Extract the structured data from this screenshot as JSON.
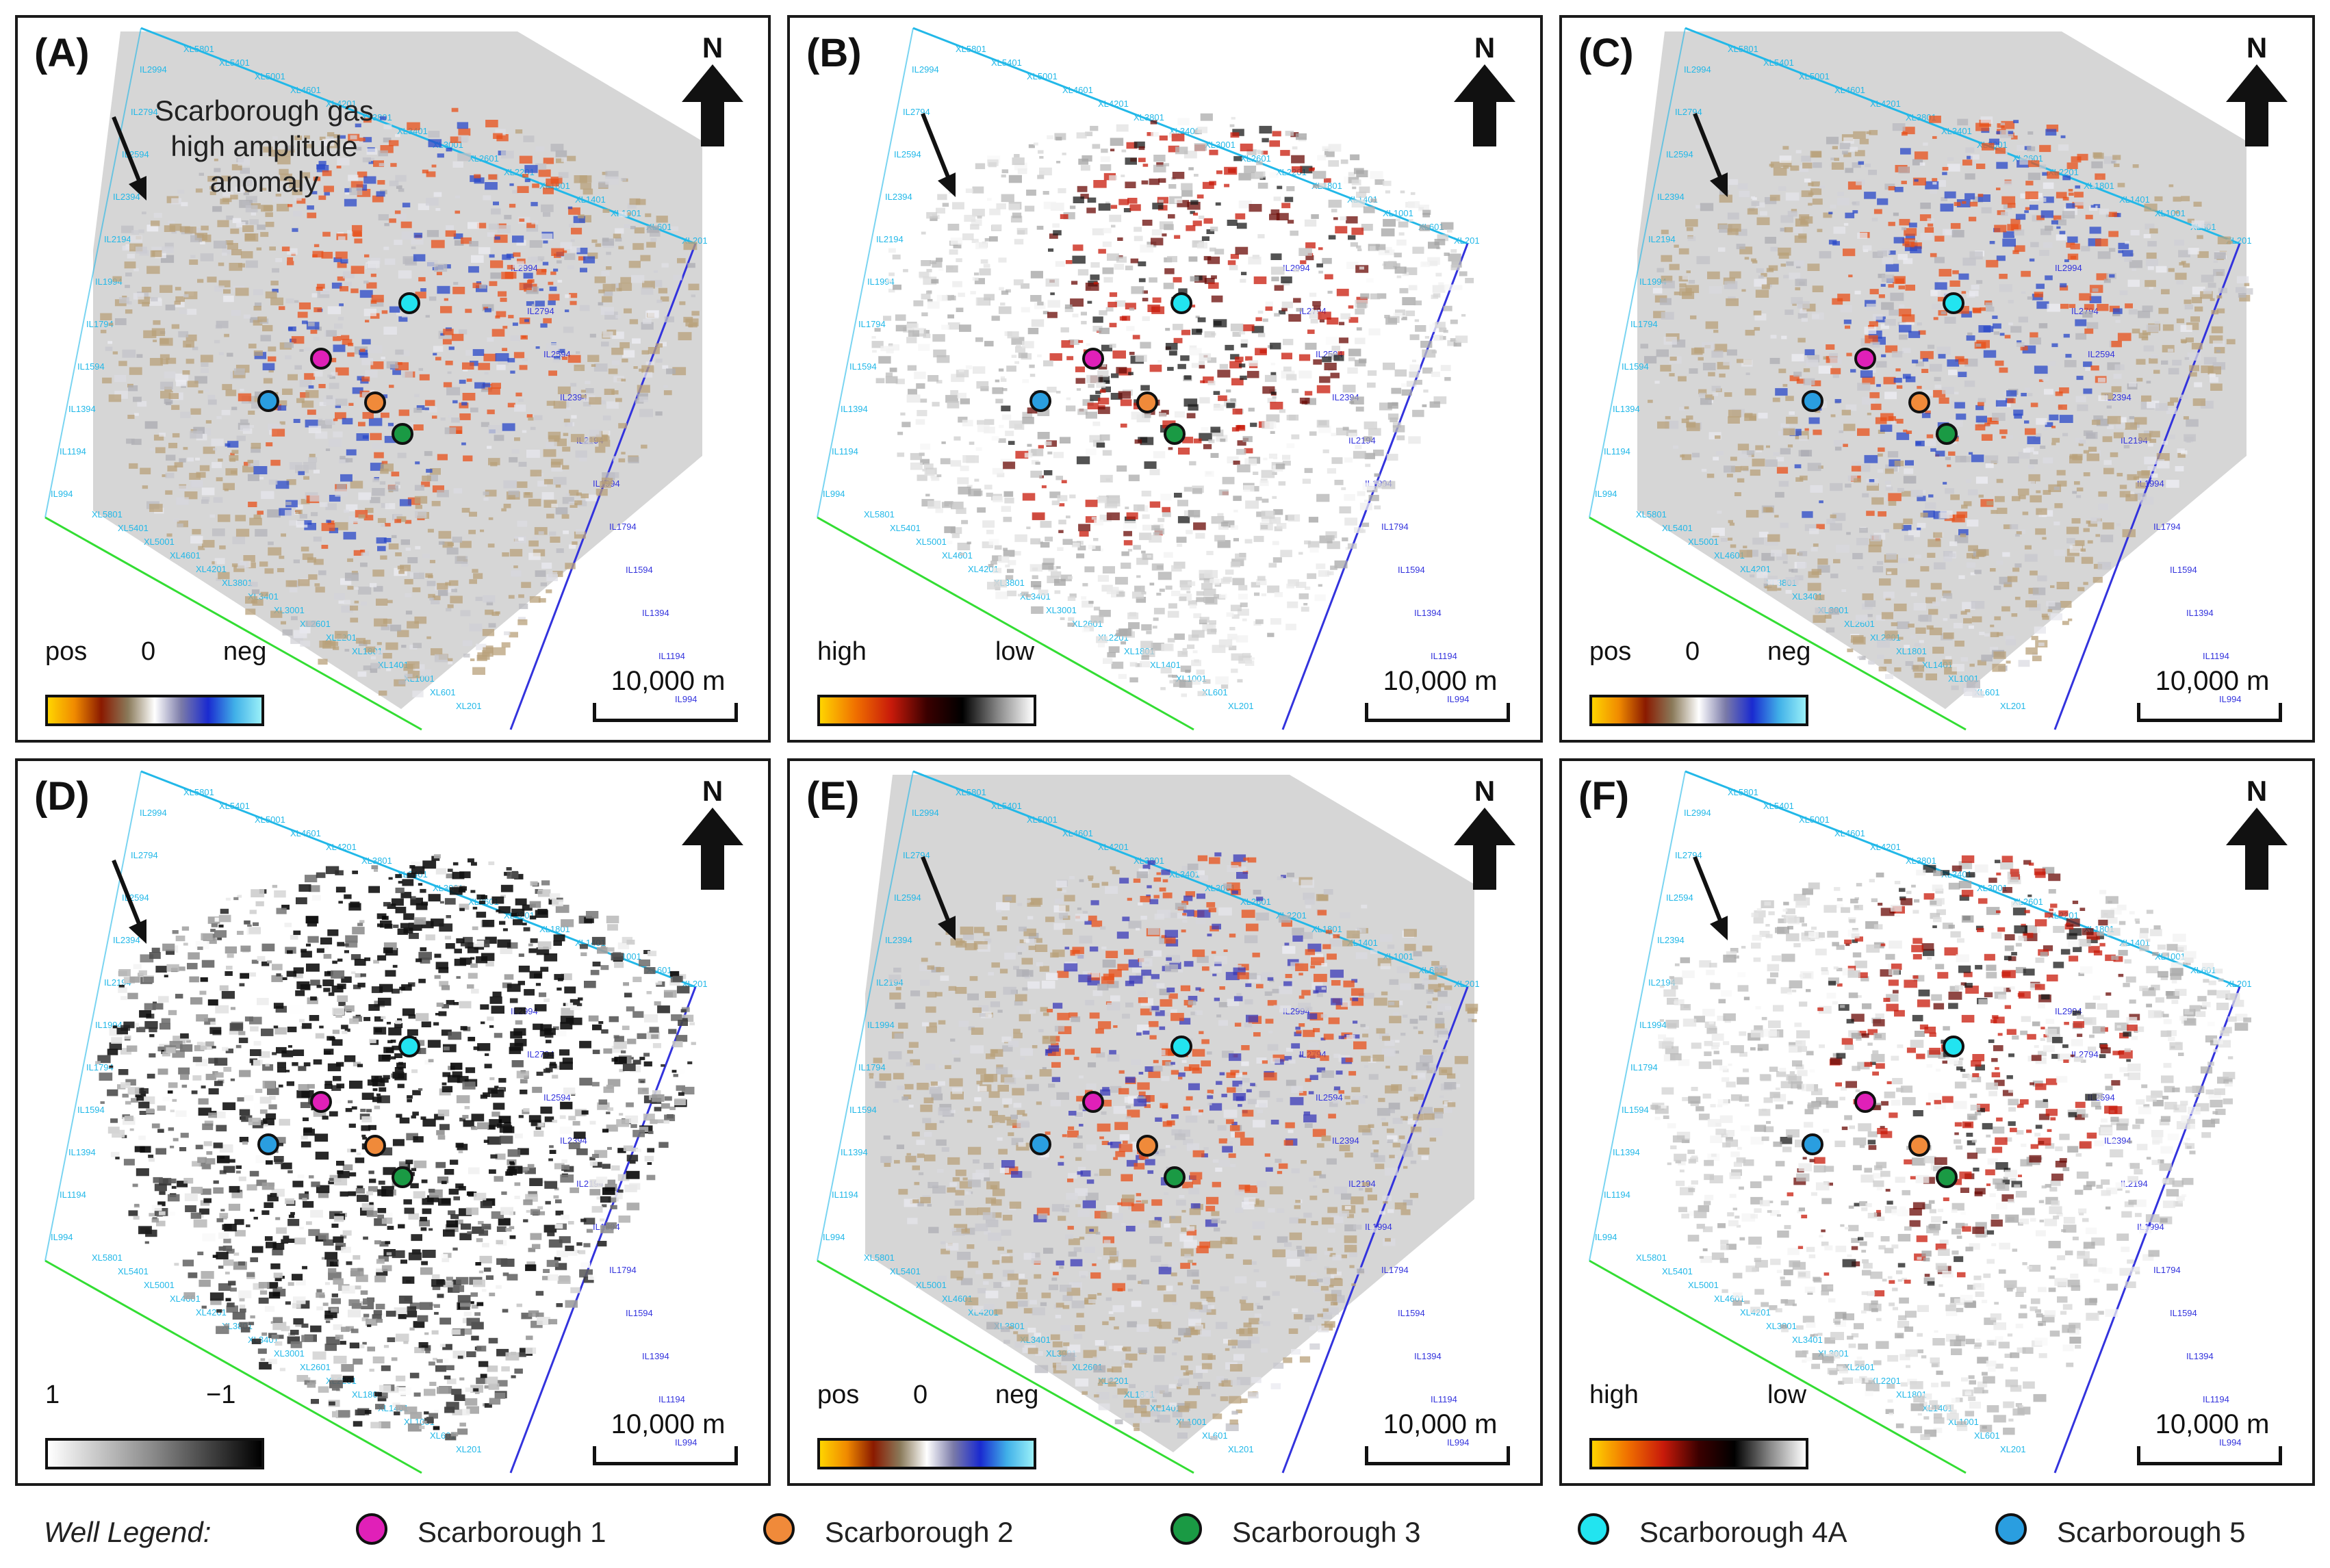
{
  "panels": [
    {
      "label": "(A)",
      "style": "amp",
      "colorbar": {
        "left": "pos",
        "mid": "0",
        "right": "neg",
        "type": "posneg"
      },
      "annotation": "Scarborough gas high amplitude anomaly"
    },
    {
      "label": "(B)",
      "style": "grey",
      "colorbar": {
        "left": "high",
        "mid": "",
        "right": "low",
        "type": "highlow"
      }
    },
    {
      "label": "(C)",
      "style": "amp",
      "colorbar": {
        "left": "pos",
        "mid": "0",
        "right": "neg",
        "type": "posneg"
      }
    },
    {
      "label": "(D)",
      "style": "bw",
      "colorbar": {
        "left": "1",
        "mid": "",
        "right": "−1",
        "type": "bw"
      }
    },
    {
      "label": "(E)",
      "style": "amp",
      "colorbar": {
        "left": "pos",
        "mid": "0",
        "right": "neg",
        "type": "posneg"
      }
    },
    {
      "label": "(F)",
      "style": "grey",
      "colorbar": {
        "left": "high",
        "mid": "",
        "right": "low",
        "type": "highlow"
      }
    }
  ],
  "north_label": "N",
  "scale_label": "10,000 m",
  "legend": {
    "title": "Well Legend:",
    "items": [
      {
        "name": "Scarborough 1",
        "color": "#e020b8"
      },
      {
        "name": "Scarborough 2",
        "color": "#f08a3a"
      },
      {
        "name": "Scarborough 3",
        "color": "#1a9a44"
      },
      {
        "name": "Scarborough 4A",
        "color": "#22e4f0"
      },
      {
        "name": "Scarborough 5",
        "color": "#2a9ee0"
      }
    ]
  },
  "axis_labels": {
    "inline": [
      "IL994",
      "IL1194",
      "IL1394",
      "IL1594",
      "IL1794",
      "IL1994",
      "IL2194",
      "IL2394",
      "IL2594",
      "IL2794",
      "IL2994"
    ],
    "crossline": [
      "XL201",
      "XL601",
      "XL1001",
      "XL1401",
      "XL1801",
      "XL2201",
      "XL2601",
      "XL3001",
      "XL3401",
      "XL3801",
      "XL4201",
      "XL4601",
      "XL5001",
      "XL5401",
      "XL5801"
    ]
  },
  "colors": {
    "pos_gradient": [
      "#ffd400",
      "#f08a00",
      "#8a1a00",
      "#8a7a5a",
      "#ffffff"
    ],
    "neg_gradient": [
      "#ffffff",
      "#7a7aa8",
      "#1a2ad0",
      "#40b0e8",
      "#9af0f8"
    ],
    "axis_cyan": "#22b8e8",
    "axis_green": "#33dd33",
    "axis_blue": "#3333dd"
  }
}
